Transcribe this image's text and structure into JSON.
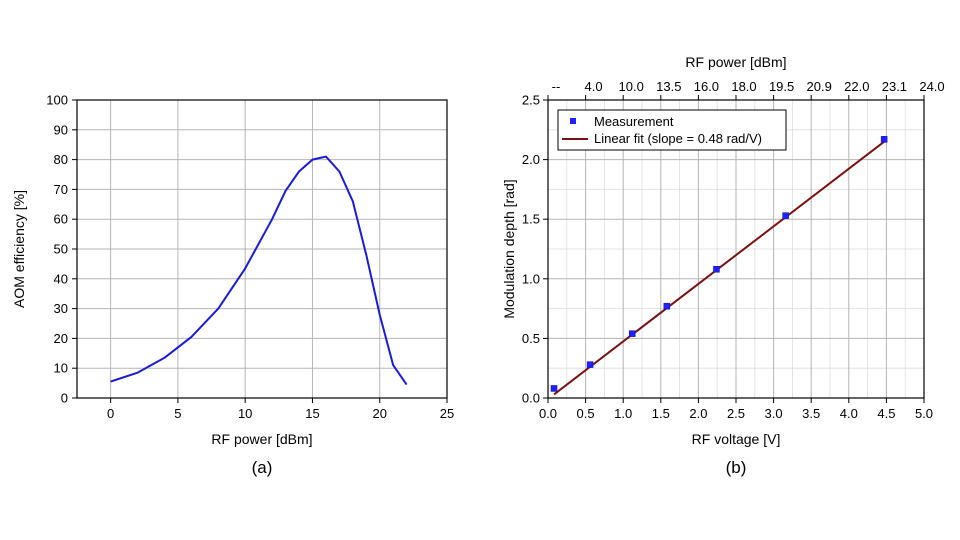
{
  "chart_data": [
    {
      "type": "line",
      "panel_label": "(a)",
      "xlabel": "RF power [dBm]",
      "ylabel": "AOM efficiency [%]",
      "xlim": [
        -2.5,
        25
      ],
      "ylim": [
        0,
        100
      ],
      "xticks": [
        0,
        5,
        10,
        15,
        20,
        25
      ],
      "yticks": [
        0,
        10,
        20,
        30,
        40,
        50,
        60,
        70,
        80,
        90,
        100
      ],
      "grid": true,
      "color": "#1a1adb",
      "series": [
        {
          "x": [
            0,
            2,
            4,
            6,
            8,
            10,
            12,
            13,
            14,
            15,
            16,
            17,
            18,
            19,
            20,
            21,
            22
          ],
          "values": [
            5.5,
            8.5,
            13.5,
            20.5,
            30,
            43.5,
            60,
            69.5,
            76,
            80,
            81,
            76,
            66,
            48,
            28,
            11,
            4.5
          ]
        }
      ]
    },
    {
      "type": "scatter",
      "panel_label": "(b)",
      "xlabel": "RF voltage [V]",
      "ylabel": "Modulation depth [rad]",
      "top_xlabel": "RF power [dBm]",
      "top_ticks": [
        "--",
        "4.0",
        "10.0",
        "13.5",
        "16.0",
        "18.0",
        "19.5",
        "20.9",
        "22.0",
        "23.1",
        "24.0"
      ],
      "xlim": [
        0,
        5
      ],
      "ylim": [
        0,
        2.5
      ],
      "xticks": [
        "0.0",
        "0.5",
        "1.0",
        "1.5",
        "2.0",
        "2.5",
        "3.0",
        "3.5",
        "4.0",
        "4.5",
        "5.0"
      ],
      "yticks": [
        "0.0",
        "0.5",
        "1.0",
        "1.5",
        "2.0",
        "2.5"
      ],
      "grid": true,
      "legend_position": "top-left",
      "legend": [
        "Measurement",
        "Linear fit (slope = 0.48 rad/V)"
      ],
      "marker_color": "#1f1fff",
      "fit_color": "#7a1010",
      "series": [
        {
          "name": "Measurement",
          "x": [
            0.08,
            0.56,
            1.12,
            1.58,
            2.24,
            3.16,
            4.47
          ],
          "values": [
            0.08,
            0.28,
            0.54,
            0.77,
            1.08,
            1.53,
            2.17
          ]
        },
        {
          "name": "Linear fit (slope = 0.48 rad/V)",
          "x": [
            0.08,
            4.47
          ],
          "values": [
            0.03,
            2.15
          ]
        }
      ]
    }
  ]
}
